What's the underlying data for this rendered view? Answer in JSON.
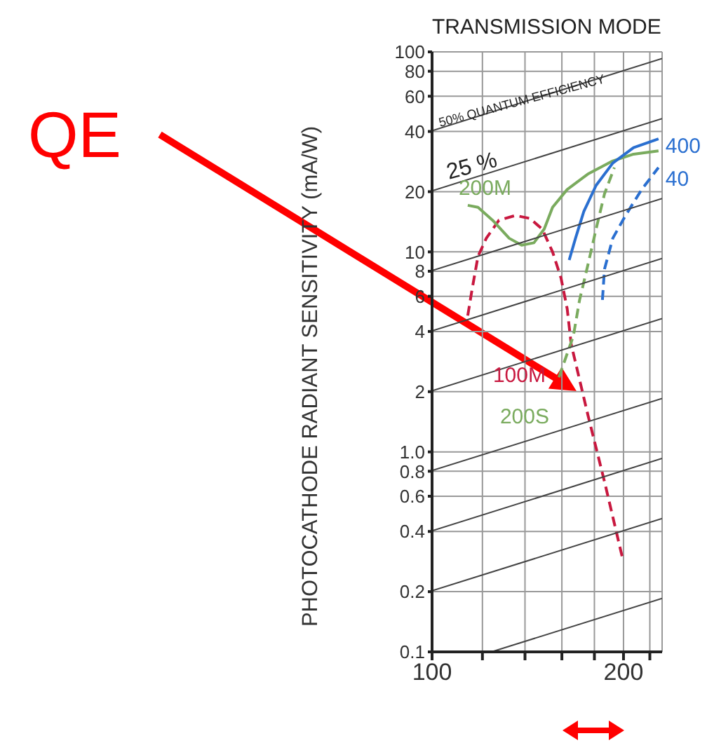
{
  "chart_data": {
    "type": "line",
    "title": "TRANSMISSION MODE",
    "ylabel": "PHOTOCATHODE RADIANT SENSITIVITY (mA/W)",
    "annotations": [
      "QE",
      {
        "text": "50% QUANTUM EFFICIENCY",
        "x": 103,
        "y": 45
      },
      "25 %"
    ],
    "log": "xy",
    "grid": true,
    "marker": "none",
    "xlim": [
      100,
      230
    ],
    "xticks": [
      100,
      {
        "value": 120,
        "label": null
      },
      {
        "value": 140,
        "label": null
      },
      {
        "value": 160,
        "label": null
      },
      {
        "value": 180,
        "label": null
      },
      200,
      {
        "value": 220,
        "label": null
      }
    ],
    "ylim": [
      0.1,
      100
    ],
    "yticks": [
      0.1,
      0.2,
      0.4,
      0.6,
      0.8,
      {
        "value": 1,
        "label": "1.0"
      },
      2,
      4,
      6,
      8,
      10,
      20,
      40,
      60,
      80,
      100
    ],
    "series": [
      {
        "name": "100M",
        "color": "#c8183f",
        "line_style": "dashed",
        "x": [
          113.8,
          115.5,
          118.1,
          121.7,
          127.4,
          135.2,
          142.5,
          149,
          154.7,
          159.5,
          163.1,
          165.5,
          175.8,
          186.7,
          199.7
        ],
        "values": [
          4.8,
          6.4,
          9.5,
          11.7,
          14.4,
          15.2,
          14.7,
          13,
          10,
          7.4,
          5.2,
          3.45,
          1.53,
          0.71,
          0.286
        ]
      },
      {
        "name": "200M",
        "color": "#7aab5e",
        "line_style": "solid",
        "x": [
          113.8,
          118.1,
          124.5,
          132.2,
          138.3,
          144.6,
          150.1,
          154.7,
          163.1,
          175.8,
          192.4,
          207.4,
          227
        ],
        "values": [
          17.1,
          16.7,
          14.4,
          11.7,
          10.8,
          11.1,
          13,
          16.7,
          20.5,
          24.5,
          28.5,
          30.8,
          32
        ]
      },
      {
        "name": "200S",
        "color": "#7aab5e",
        "line_style": "dashed",
        "x": [
          158.3,
          166.8,
          170.6,
          175.8,
          181.1,
          186.7,
          193.5
        ],
        "values": [
          2.36,
          3.8,
          5.75,
          8.6,
          13,
          19.5,
          26.4
        ]
      },
      {
        "name": "400",
        "color": "#2a6fd0",
        "line_style": "solid",
        "x": [
          164.3,
          168.1,
          173.2,
          181.1,
          192.4,
          207.4,
          227
        ],
        "values": [
          9.1,
          11.7,
          15.9,
          21.5,
          27.8,
          33.2,
          36.7
        ]
      },
      {
        "name": "40",
        "color": "#2a6fd0",
        "line_style": "dashed",
        "x": [
          185.3,
          186.7,
          192.4,
          201.2,
          213.6,
          227
        ],
        "values": [
          5.75,
          8.2,
          11.7,
          15.1,
          20.5,
          26.4
        ]
      },
      {
        "color": "#444444",
        "line_style": "solid",
        "x": [
          100,
          230
        ],
        "values": [
          40.3,
          92.7
        ]
      },
      {
        "color": "#444444",
        "line_style": "solid",
        "x": [
          100,
          230
        ],
        "values": [
          20.2,
          46.4
        ]
      },
      {
        "color": "#444444",
        "line_style": "solid",
        "x": [
          100,
          230
        ],
        "values": [
          8.06,
          18.5
        ]
      },
      {
        "color": "#444444",
        "line_style": "solid",
        "x": [
          100,
          230
        ],
        "values": [
          4.03,
          9.27
        ]
      },
      {
        "color": "#444444",
        "line_style": "solid",
        "x": [
          100,
          230
        ],
        "values": [
          2.02,
          4.64
        ]
      },
      {
        "color": "#444444",
        "line_style": "solid",
        "x": [
          100,
          230
        ],
        "values": [
          0.806,
          1.85
        ]
      },
      {
        "color": "#444444",
        "line_style": "solid",
        "x": [
          100,
          230
        ],
        "values": [
          0.403,
          0.927
        ]
      },
      {
        "color": "#444444",
        "line_style": "solid",
        "x": [
          100,
          230
        ],
        "values": [
          0.202,
          0.464
        ]
      },
      {
        "color": "#444444",
        "line_style": "solid",
        "x": [
          124,
          230
        ],
        "values": [
          0.1,
          0.185
        ]
      }
    ]
  }
}
